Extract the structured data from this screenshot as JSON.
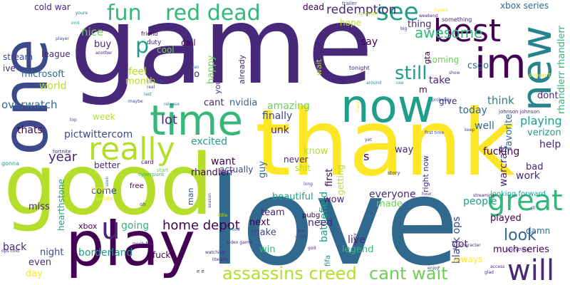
{
  "words": [
    {
      "id": "game",
      "text": "game"
    },
    {
      "id": "love",
      "text": "love"
    },
    {
      "id": "thank",
      "text": "thank"
    },
    {
      "id": "good",
      "text": "good"
    },
    {
      "id": "one",
      "text": "one"
    },
    {
      "id": "play",
      "text": "play"
    },
    {
      "id": "now",
      "text": "now"
    },
    {
      "id": "new",
      "text": "new"
    },
    {
      "id": "time",
      "text": "time"
    },
    {
      "id": "im",
      "text": "im"
    },
    {
      "id": "best",
      "text": "best"
    },
    {
      "id": "really",
      "text": "really"
    },
    {
      "id": "great",
      "text": "great"
    },
    {
      "id": "will",
      "text": "will"
    },
    {
      "id": "fun",
      "text": "fun"
    },
    {
      "id": "red_dead",
      "text": "red dead"
    },
    {
      "id": "see",
      "text": "see"
    },
    {
      "id": "p",
      "text": "p"
    },
    {
      "id": "u",
      "text": "u"
    },
    {
      "id": "assassins_creed",
      "text": "assassins creed"
    },
    {
      "id": "cant_wait",
      "text": "cant wait"
    },
    {
      "id": "look",
      "text": "look"
    },
    {
      "id": "still",
      "text": "still"
    },
    {
      "id": "home_depot",
      "text": "home depot"
    },
    {
      "id": "lot",
      "text": "lot"
    },
    {
      "id": "year",
      "text": "year"
    },
    {
      "id": "awesome",
      "text": "awesome"
    },
    {
      "id": "redemption",
      "text": "redemption"
    },
    {
      "id": "playing",
      "text": "playing"
    },
    {
      "id": "xbox_series",
      "text": "xbox series"
    },
    {
      "id": "nice",
      "text": "nice"
    },
    {
      "id": "cold_war",
      "text": "cold war"
    },
    {
      "id": "dead",
      "text": "dead"
    },
    {
      "id": "overwatch",
      "text": "overwatch"
    },
    {
      "id": "microsoft",
      "text": "microsoft"
    },
    {
      "id": "world",
      "text": "world"
    },
    {
      "id": "excited",
      "text": "excited"
    },
    {
      "id": "want",
      "text": "want"
    },
    {
      "id": "finally",
      "text": "finally"
    },
    {
      "id": "amazing",
      "text": "amazing"
    },
    {
      "id": "thats",
      "text": "thats"
    },
    {
      "id": "pictwittercom",
      "text": "pictwittercom"
    },
    {
      "id": "borderland",
      "text": "borderland"
    },
    {
      "id": "going",
      "text": "going"
    },
    {
      "id": "made",
      "text": "made"
    },
    {
      "id": "everyone",
      "text": "everyone"
    },
    {
      "id": "people",
      "text": "people"
    },
    {
      "id": "work",
      "text": "work"
    },
    {
      "id": "bad",
      "text": "bad"
    },
    {
      "id": "help",
      "text": "help"
    },
    {
      "id": "fucking",
      "text": "fucking"
    },
    {
      "id": "verizon",
      "text": "verizon"
    },
    {
      "id": "battlefield",
      "text": "battlefield"
    },
    {
      "id": "black_ops",
      "text": "black ops"
    },
    {
      "id": "warcraft",
      "text": "warcraft"
    },
    {
      "id": "rhandlerr",
      "text": "rhandlerr"
    },
    {
      "id": "rhandlerr_rhandlerr",
      "text": "rhandlerr rhandlerr"
    },
    {
      "id": "favorite",
      "text": "favorite"
    },
    {
      "id": "dont",
      "text": "dont"
    },
    {
      "id": "well",
      "text": "well"
    },
    {
      "id": "think",
      "text": "think"
    },
    {
      "id": "today",
      "text": "today"
    },
    {
      "id": "unk",
      "text": "unk"
    },
    {
      "id": "cant",
      "text": "cant"
    },
    {
      "id": "nvidia",
      "text": "nvidia"
    },
    {
      "id": "feel",
      "text": "feel"
    },
    {
      "id": "month",
      "text": "month"
    },
    {
      "id": "happy",
      "text": "happy"
    },
    {
      "id": "youtube",
      "text": "youtube"
    },
    {
      "id": "go",
      "text": "go"
    },
    {
      "id": "cool",
      "text": "cool"
    },
    {
      "id": "call",
      "text": "call"
    },
    {
      "id": "buy",
      "text": "buy"
    },
    {
      "id": "league",
      "text": "league"
    },
    {
      "id": "stream",
      "text": "stream"
    },
    {
      "id": "ive",
      "text": "ive"
    },
    {
      "id": "week",
      "text": "week"
    },
    {
      "id": "better",
      "text": "better"
    },
    {
      "id": "come",
      "text": "come"
    },
    {
      "id": "actually",
      "text": "actually"
    },
    {
      "id": "guy",
      "text": "guy"
    },
    {
      "id": "man",
      "text": "man"
    },
    {
      "id": "xbox",
      "text": "xbox"
    },
    {
      "id": "miss",
      "text": "miss"
    },
    {
      "id": "back",
      "text": "back"
    },
    {
      "id": "night",
      "text": "night"
    },
    {
      "id": "even",
      "text": "even"
    },
    {
      "id": "day",
      "text": "day"
    },
    {
      "id": "hearthstone",
      "text": "hearthstone"
    },
    {
      "id": "next",
      "text": "next"
    },
    {
      "id": "make",
      "text": "make"
    },
    {
      "id": "win",
      "text": "win"
    },
    {
      "id": "team",
      "text": "team"
    },
    {
      "id": "need",
      "text": "need"
    },
    {
      "id": "live",
      "text": "live"
    },
    {
      "id": "legend",
      "text": "legend"
    },
    {
      "id": "got",
      "text": "got"
    },
    {
      "id": "always",
      "text": "always"
    },
    {
      "id": "played",
      "text": "played"
    },
    {
      "id": "much_series",
      "text": "much series"
    },
    {
      "id": "damn",
      "text": "damn"
    },
    {
      "id": "wow",
      "text": "wow"
    },
    {
      "id": "beautiful",
      "text": "beautiful"
    },
    {
      "id": "know",
      "text": "know"
    },
    {
      "id": "shit",
      "text": "shit"
    },
    {
      "id": "way",
      "text": "way"
    },
    {
      "id": "s",
      "text": "s"
    },
    {
      "id": "first",
      "text": "first"
    },
    {
      "id": "getting",
      "text": "getting"
    },
    {
      "id": "never",
      "text": "never"
    },
    {
      "id": "right_now",
      "text": "right now"
    },
    {
      "id": "hope",
      "text": "hope"
    },
    {
      "id": "say",
      "text": "say"
    },
    {
      "id": "thing",
      "text": "thing"
    },
    {
      "id": "coming",
      "text": "coming"
    },
    {
      "id": "gta",
      "text": "gta"
    },
    {
      "id": "csgo",
      "text": "csgo"
    },
    {
      "id": "take",
      "text": "take"
    },
    {
      "id": "give",
      "text": "give"
    },
    {
      "id": "m",
      "text": "m"
    },
    {
      "id": "wait",
      "text": "wait"
    },
    {
      "id": "already",
      "text": "already"
    },
    {
      "id": "fifa",
      "text": "fifa"
    },
    {
      "id": "pubg",
      "text": "pubg"
    },
    {
      "id": "fuck",
      "text": "fuck"
    },
    {
      "id": "looking_forward",
      "text": "looking forward"
    },
    {
      "id": "fortnite",
      "text": "fortnite"
    },
    {
      "id": "free",
      "text": "free"
    },
    {
      "id": "card",
      "text": "card"
    },
    {
      "id": "cyberpunk",
      "text": "cyberpunk"
    },
    {
      "id": "start",
      "text": "start"
    },
    {
      "id": "gonna",
      "text": "gonna"
    },
    {
      "id": "please",
      "text": "please"
    },
    {
      "id": "update",
      "text": "update"
    },
    {
      "id": "seen",
      "text": "seen"
    },
    {
      "id": "oh",
      "text": "oh"
    },
    {
      "id": "duty",
      "text": "duty"
    },
    {
      "id": "friend",
      "text": "friend"
    },
    {
      "id": "another",
      "text": "another"
    },
    {
      "id": "player",
      "text": "player"
    },
    {
      "id": "end",
      "text": "end"
    },
    {
      "id": "youre",
      "text": "youre"
    },
    {
      "id": "fan",
      "text": "fan"
    },
    {
      "id": "console",
      "text": "console"
    },
    {
      "id": "real",
      "text": "real"
    },
    {
      "id": "last",
      "text": "last"
    },
    {
      "id": "maybe",
      "text": "maybe"
    },
    {
      "id": "release",
      "text": "release"
    },
    {
      "id": "top",
      "text": "top"
    },
    {
      "id": "tonight",
      "text": "tonight"
    },
    {
      "id": "around",
      "text": "around"
    },
    {
      "id": "use",
      "text": "use"
    },
    {
      "id": "amazon",
      "text": "amazon"
    },
    {
      "id": "trailer",
      "text": "trailer"
    },
    {
      "id": "big",
      "text": "big"
    },
    {
      "id": "far",
      "text": "far"
    },
    {
      "id": "something",
      "text": "something"
    },
    {
      "id": "hyped",
      "text": "hyped"
    },
    {
      "id": "weekend",
      "text": "weekend"
    },
    {
      "id": "show",
      "text": "show"
    },
    {
      "id": "support",
      "text": "support"
    },
    {
      "id": "probably",
      "text": "probably"
    },
    {
      "id": "johnson_johnson",
      "text": "johnson johnson"
    },
    {
      "id": "keep",
      "text": "keep"
    },
    {
      "id": "first_time",
      "text": "first time"
    },
    {
      "id": "crazy",
      "text": "crazy"
    },
    {
      "id": "yet",
      "text": "yet"
    },
    {
      "id": "story",
      "text": "story"
    },
    {
      "id": "long",
      "text": "long"
    },
    {
      "id": "hour",
      "text": "hour"
    },
    {
      "id": "streaming",
      "text": "streaming"
    },
    {
      "id": "everything",
      "text": "everything"
    },
    {
      "id": "watching",
      "text": "watching"
    },
    {
      "id": "much_fun",
      "text": "much fun"
    },
    {
      "id": "ops_cold",
      "text": "ops cold"
    },
    {
      "id": "literally",
      "text": "literally"
    },
    {
      "id": "little",
      "text": "little"
    },
    {
      "id": "season",
      "text": "season"
    },
    {
      "id": "part",
      "text": "part"
    },
    {
      "id": "video",
      "text": "video"
    },
    {
      "id": "video_game",
      "text": "video game"
    },
    {
      "id": "loved",
      "text": "loved"
    },
    {
      "id": "enjoy",
      "text": "enjoy"
    },
    {
      "id": "character",
      "text": "character"
    },
    {
      "id": "access",
      "text": "access"
    },
    {
      "id": "glad",
      "text": "glad"
    },
    {
      "id": "ill",
      "text": "ill"
    },
    {
      "id": "god",
      "text": "god"
    },
    {
      "id": "many",
      "text": "many"
    },
    {
      "id": "e_e",
      "text": "e e"
    }
  ]
}
